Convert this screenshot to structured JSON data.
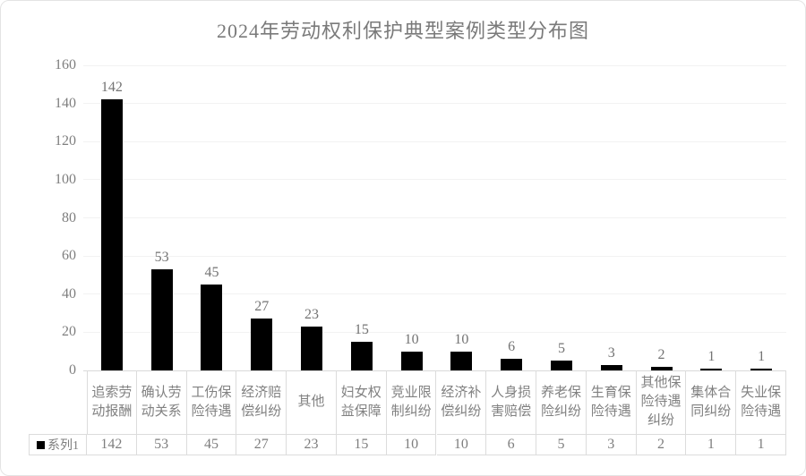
{
  "chart": {
    "title": "2024年劳动权利保护典型案例类型分布图"
  },
  "chart_data": {
    "type": "bar",
    "title": "2024年劳动权利保护典型案例类型分布图",
    "categories": [
      "追索劳动报酬",
      "确认劳动关系",
      "工伤保险待遇",
      "经济赔偿纠纷",
      "其他",
      "妇女权益保障",
      "竞业限制纠纷",
      "经济补偿纠纷",
      "人身损害赔偿",
      "养老保险纠纷",
      "生育保险待遇",
      "其他保险待遇纠纷",
      "集体合同纠纷",
      "失业保险待遇"
    ],
    "category_label_lines": [
      "追索劳\n动报酬",
      "确认劳\n动关系",
      "工伤保\n险待遇",
      "经济赔\n偿纠纷",
      "其他",
      "妇女权\n益保障",
      "竞业限\n制纠纷",
      "经济补\n偿纠纷",
      "人身损\n害赔偿",
      "养老保\n险纠纷",
      "生育保\n险待遇",
      "其他保\n险待遇\n纠纷",
      "集体合\n同纠纷",
      "失业保\n险待遇"
    ],
    "series": [
      {
        "name": "系列1",
        "values": [
          142,
          53,
          45,
          27,
          23,
          15,
          10,
          10,
          6,
          5,
          3,
          2,
          1,
          1
        ]
      }
    ],
    "data_labels": [
      142,
      53,
      45,
      27,
      23,
      15,
      10,
      10,
      6,
      5,
      3,
      2,
      1,
      1
    ],
    "xlabel": "",
    "ylabel": "",
    "ylim": [
      0,
      160
    ],
    "yticks": [
      0,
      20,
      40,
      60,
      80,
      100,
      120,
      140,
      160
    ],
    "grid": true,
    "legend_position": "bottom-data-table",
    "bar_color": "#000000"
  },
  "legend": {
    "series1_label": "系列1"
  },
  "colors": {
    "bar": "#000000",
    "gray_text": "#7a7a7a",
    "gridline": "#f2f2f2",
    "table_border": "#dcdcdc"
  }
}
